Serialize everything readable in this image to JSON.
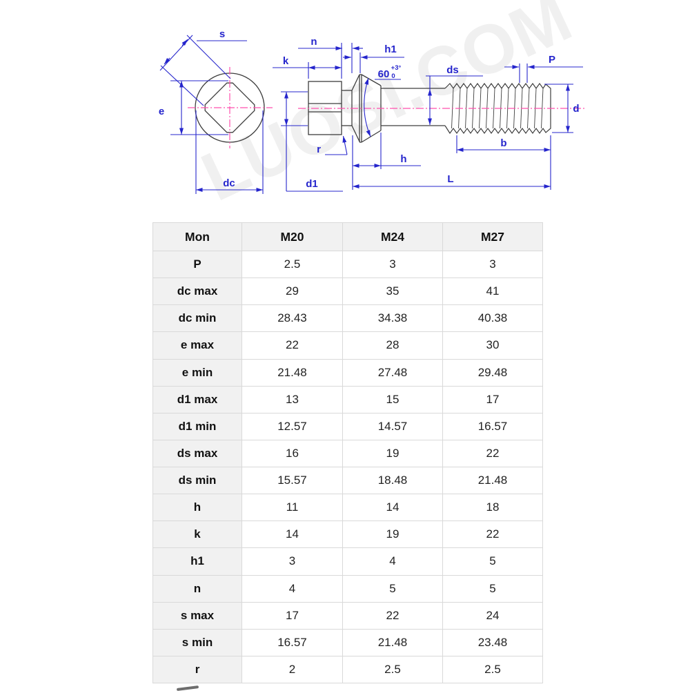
{
  "watermark": {
    "text": "LUOSI.COM"
  },
  "diagram": {
    "colors": {
      "dimension_blue": "#2525cc",
      "centerline_pink": "#ff4fae",
      "outline_dark": "#3d3d3d",
      "table_grid": "#d9d9d9",
      "table_header_bg": "#f1f1f1"
    },
    "labels": {
      "s": "s",
      "e": "e",
      "dc": "dc",
      "k": "k",
      "n": "n",
      "h1": "h1",
      "angle": "60",
      "angle_tol_upper": "+3°",
      "angle_tol_lower": "0",
      "ds": "ds",
      "p": "P",
      "d": "d",
      "r": "r",
      "h": "h",
      "b": "b",
      "d1": "d1",
      "length": "L"
    }
  },
  "table": {
    "headers": [
      "Mon",
      "M20",
      "M24",
      "M27"
    ],
    "rows": [
      {
        "label": "P",
        "values": [
          "2.5",
          "3",
          "3"
        ]
      },
      {
        "label": "dc max",
        "values": [
          "29",
          "35",
          "41"
        ]
      },
      {
        "label": "dc min",
        "values": [
          "28.43",
          "34.38",
          "40.38"
        ]
      },
      {
        "label": "e max",
        "values": [
          "22",
          "28",
          "30"
        ]
      },
      {
        "label": "e min",
        "values": [
          "21.48",
          "27.48",
          "29.48"
        ]
      },
      {
        "label": "d1 max",
        "values": [
          "13",
          "15",
          "17"
        ]
      },
      {
        "label": "d1 min",
        "values": [
          "12.57",
          "14.57",
          "16.57"
        ]
      },
      {
        "label": "ds max",
        "values": [
          "16",
          "19",
          "22"
        ]
      },
      {
        "label": "ds min",
        "values": [
          "15.57",
          "18.48",
          "21.48"
        ]
      },
      {
        "label": "h",
        "values": [
          "11",
          "14",
          "18"
        ]
      },
      {
        "label": "k",
        "values": [
          "14",
          "19",
          "22"
        ]
      },
      {
        "label": "h1",
        "values": [
          "3",
          "4",
          "5"
        ]
      },
      {
        "label": "n",
        "values": [
          "4",
          "5",
          "5"
        ]
      },
      {
        "label": "s max",
        "values": [
          "17",
          "22",
          "24"
        ]
      },
      {
        "label": "s min",
        "values": [
          "16.57",
          "21.48",
          "23.48"
        ]
      },
      {
        "label": "r",
        "values": [
          "2",
          "2.5",
          "2.5"
        ]
      }
    ]
  }
}
